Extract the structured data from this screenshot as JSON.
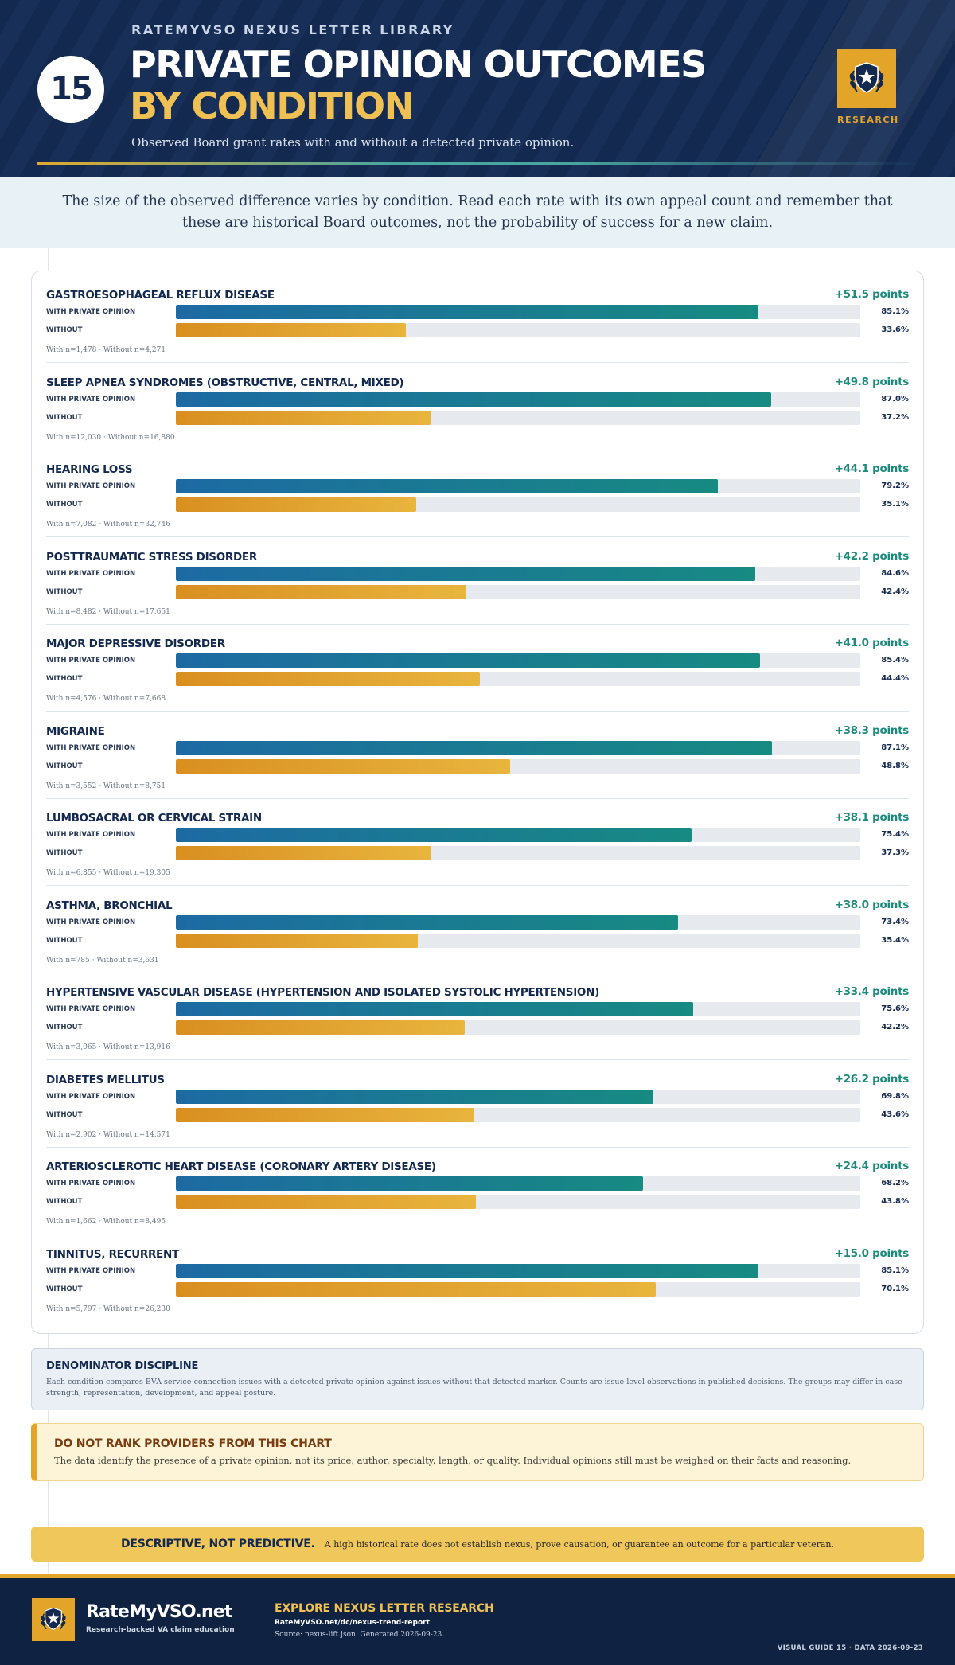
{
  "header": {
    "badge_number": "15",
    "kicker": "RATEMYVSO NEXUS LETTER LIBRARY",
    "title_line1": "PRIVATE OPINION OUTCOMES",
    "title_line2": "BY CONDITION",
    "subtitle": "Observed Board grant rates with and without a detected private opinion.",
    "research_label": "RESEARCH"
  },
  "intro": "The size of the observed difference varies by condition. Read each rate with its own appeal count and remember that these are historical Board outcomes, not the probability of success for a new claim.",
  "labels": {
    "with": "WITH PRIVATE OPINION",
    "without": "WITHOUT"
  },
  "chart_data": {
    "type": "bar",
    "orientation": "horizontal",
    "xlim": [
      0,
      100
    ],
    "unit": "%",
    "series": [
      {
        "name": "WITH PRIVATE OPINION",
        "color": "#1d6aa3"
      },
      {
        "name": "WITHOUT",
        "color": "#d98f20"
      }
    ],
    "rows": [
      {
        "condition": "Gastroesophageal Reflux Disease",
        "diff": "+51.5 points",
        "with": 85.1,
        "without": 33.6,
        "with_label": "85.1%",
        "without_label": "33.6%",
        "counts": "With n=1,478 · Without n=4,271"
      },
      {
        "condition": "Sleep Apnea Syndromes (Obstructive, Central, Mixed)",
        "diff": "+49.8 points",
        "with": 87.0,
        "without": 37.2,
        "with_label": "87.0%",
        "without_label": "37.2%",
        "counts": "With n=12,030 · Without n=16,880"
      },
      {
        "condition": "Hearing Loss",
        "diff": "+44.1 points",
        "with": 79.2,
        "without": 35.1,
        "with_label": "79.2%",
        "without_label": "35.1%",
        "counts": "With n=7,082 · Without n=32,746"
      },
      {
        "condition": "Posttraumatic Stress Disorder",
        "diff": "+42.2 points",
        "with": 84.6,
        "without": 42.4,
        "with_label": "84.6%",
        "without_label": "42.4%",
        "counts": "With n=8,482 · Without n=17,651"
      },
      {
        "condition": "Major Depressive Disorder",
        "diff": "+41.0 points",
        "with": 85.4,
        "without": 44.4,
        "with_label": "85.4%",
        "without_label": "44.4%",
        "counts": "With n=4,576 · Without n=7,668"
      },
      {
        "condition": "Migraine",
        "diff": "+38.3 points",
        "with": 87.1,
        "without": 48.8,
        "with_label": "87.1%",
        "without_label": "48.8%",
        "counts": "With n=3,552 · Without n=8,751"
      },
      {
        "condition": "Lumbosacral or Cervical Strain",
        "diff": "+38.1 points",
        "with": 75.4,
        "without": 37.3,
        "with_label": "75.4%",
        "without_label": "37.3%",
        "counts": "With n=6,855 · Without n=19,305"
      },
      {
        "condition": "Asthma, Bronchial",
        "diff": "+38.0 points",
        "with": 73.4,
        "without": 35.4,
        "with_label": "73.4%",
        "without_label": "35.4%",
        "counts": "With n=785 · Without n=3,631"
      },
      {
        "condition": "Hypertensive Vascular Disease (Hypertension and Isolated Systolic Hypertension)",
        "diff": "+33.4 points",
        "with": 75.6,
        "without": 42.2,
        "with_label": "75.6%",
        "without_label": "42.2%",
        "counts": "With n=3,065 · Without n=13,916"
      },
      {
        "condition": "Diabetes Mellitus",
        "diff": "+26.2 points",
        "with": 69.8,
        "without": 43.6,
        "with_label": "69.8%",
        "without_label": "43.6%",
        "counts": "With n=2,902 · Without n=14,571"
      },
      {
        "condition": "Arteriosclerotic Heart Disease (Coronary Artery Disease)",
        "diff": "+24.4 points",
        "with": 68.2,
        "without": 43.8,
        "with_label": "68.2%",
        "without_label": "43.8%",
        "counts": "With n=1,662 · Without n=8,495"
      },
      {
        "condition": "Tinnitus, Recurrent",
        "diff": "+15.0 points",
        "with": 85.1,
        "without": 70.1,
        "with_label": "85.1%",
        "without_label": "70.1%",
        "counts": "With n=5,797 · Without n=26,230"
      }
    ]
  },
  "denominator": {
    "title": "DENOMINATOR DISCIPLINE",
    "text": "Each condition compares BVA service-connection issues with a detected private opinion against issues without that detected marker. Counts are issue-level observations in published decisions. The groups may differ in case strength, representation, development, and appeal posture."
  },
  "warning": {
    "title": "DO NOT RANK PROVIDERS FROM THIS CHART",
    "text": "The data identify the presence of a private opinion, not its price, author, specialty, length, or quality. Individual opinions still must be weighed on their facts and reasoning."
  },
  "descriptive": {
    "title": "DESCRIPTIVE, NOT PREDICTIVE.",
    "text": "A high historical rate does not establish nexus, prove causation, or guarantee an outcome for a particular veteran."
  },
  "footer": {
    "brand": "RateMyVSO.net",
    "tagline": "Research-backed VA claim education",
    "explore": "EXPLORE NEXUS LETTER RESEARCH",
    "url": "RateMyVSO.net/dc/nexus-trend-report",
    "source": "Source: nexus-lift.json. Generated 2026-09-23.",
    "guide": "VISUAL GUIDE 15 · DATA 2026-09-23"
  },
  "colors": {
    "navy": "#13294f",
    "gold": "#e2a52a",
    "teal": "#178a82",
    "blue": "#1d6aa3"
  },
  "icons": {
    "badge": "shield-star-laurel-icon"
  }
}
